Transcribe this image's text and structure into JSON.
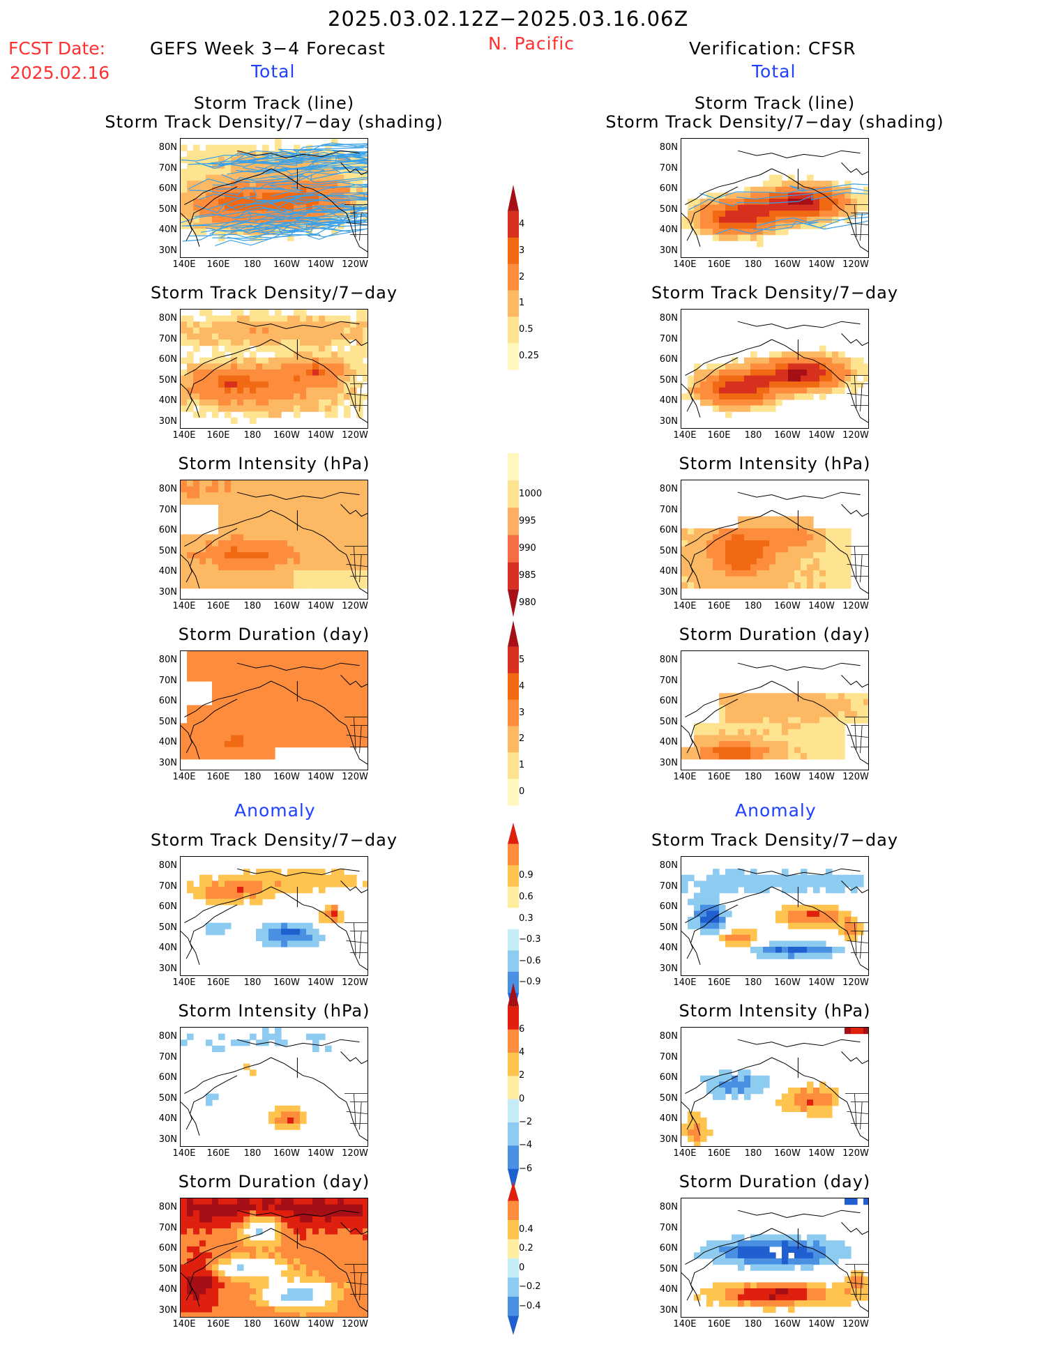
{
  "header": {
    "date_range": "2025.03.02.12Z−2025.03.16.06Z",
    "fcst_label": "FCST Date:",
    "fcst_date": "2025.02.16",
    "left_title": "GEFS Week 3−4 Forecast",
    "region": "N. Pacific",
    "right_title": "Verification: CFSR",
    "total_left": "Total",
    "total_right": "Total",
    "anomaly_left": "Anomaly",
    "anomaly_right": "Anomaly"
  },
  "axes": {
    "lat_ticks": [
      "80N",
      "70N",
      "60N",
      "50N",
      "40N",
      "30N"
    ],
    "lon_ticks": [
      "140E",
      "160E",
      "180",
      "160W",
      "140W",
      "120W"
    ]
  },
  "panels": {
    "left": [
      {
        "title1": "Storm Track (line)",
        "title2": "Storm Track Density/7−day (shading)",
        "kind": "density",
        "tracks": true
      },
      {
        "title1": "",
        "title2": "Storm Track Density/7−day",
        "kind": "density_wide"
      },
      {
        "title1": "",
        "title2": "Storm Intensity (hPa)",
        "kind": "intensity_fc"
      },
      {
        "title1": "",
        "title2": "Storm Duration (day)",
        "kind": "duration_fc"
      },
      {
        "title1": "",
        "title2": "Storm Track Density/7−day",
        "kind": "anom_density_fc"
      },
      {
        "title1": "",
        "title2": "Storm Intensity (hPa)",
        "kind": "anom_int_fc"
      },
      {
        "title1": "",
        "title2": "Storm Duration (day)",
        "kind": "anom_dur_fc"
      }
    ],
    "right": [
      {
        "title1": "Storm Track (line)",
        "title2": "Storm Track Density/7−day (shading)",
        "kind": "density_v",
        "tracks": true
      },
      {
        "title1": "",
        "title2": "Storm Track Density/7−day",
        "kind": "density_v"
      },
      {
        "title1": "",
        "title2": "Storm Intensity (hPa)",
        "kind": "intensity_v"
      },
      {
        "title1": "",
        "title2": "Storm Duration (day)",
        "kind": "duration_v"
      },
      {
        "title1": "",
        "title2": "Storm Track Density/7−day",
        "kind": "anom_density_v"
      },
      {
        "title1": "",
        "title2": "Storm Intensity (hPa)",
        "kind": "anom_int_v"
      },
      {
        "title1": "",
        "title2": "Storm Duration (day)",
        "kind": "anom_dur_v"
      }
    ]
  },
  "colorbars": [
    {
      "name": "density",
      "labels": [
        "4",
        "3",
        "2",
        "1",
        "0.5",
        "0.25"
      ],
      "colors": [
        "#a50f15",
        "#d7301f",
        "#f16913",
        "#fd8d3c",
        "#fdb863",
        "#fee391",
        "#fff7bc"
      ],
      "extends": "top"
    },
    {
      "name": "intensity",
      "labels": [
        "1000",
        "995",
        "990",
        "985",
        "980"
      ],
      "colors": [
        "#fff7bc",
        "#fee391",
        "#fdae61",
        "#f46d43",
        "#d73027",
        "#a50f15"
      ],
      "extends": "bottom"
    },
    {
      "name": "duration",
      "labels": [
        "5",
        "4",
        "3",
        "2",
        "1",
        "0"
      ],
      "colors": [
        "#a50f15",
        "#d7301f",
        "#f16913",
        "#fd8d3c",
        "#fdb863",
        "#fee391",
        "#fff7bc"
      ],
      "extends": "top"
    },
    {
      "name": "anom_density",
      "labels": [
        "0.9",
        "0.6",
        "0.3",
        "−0.3",
        "−0.6",
        "−0.9"
      ],
      "colors": [
        "#e0200f",
        "#fd8d3c",
        "#fec44f",
        "#ffeda0",
        "#ffffff",
        "#c6ecf7",
        "#8ecbf0",
        "#4a90e2",
        "#1f5fd0"
      ],
      "extends": "both"
    },
    {
      "name": "anom_intensity",
      "labels": [
        "6",
        "4",
        "2",
        "0",
        "−2",
        "−4",
        "−6"
      ],
      "colors": [
        "#a50f15",
        "#e0200f",
        "#fd8d3c",
        "#fec44f",
        "#ffeda0",
        "#c6ecf7",
        "#8ecbf0",
        "#4a90e2",
        "#1f5fd0"
      ],
      "extends": "both"
    },
    {
      "name": "anom_duration",
      "labels": [
        "0.4",
        "0.2",
        "0",
        "−0.2",
        "−0.4"
      ],
      "colors": [
        "#e0200f",
        "#fd8d3c",
        "#fec44f",
        "#ffeda0",
        "#c6ecf7",
        "#8ecbf0",
        "#4a90e2",
        "#1f5fd0"
      ],
      "extends": "both"
    }
  ]
}
